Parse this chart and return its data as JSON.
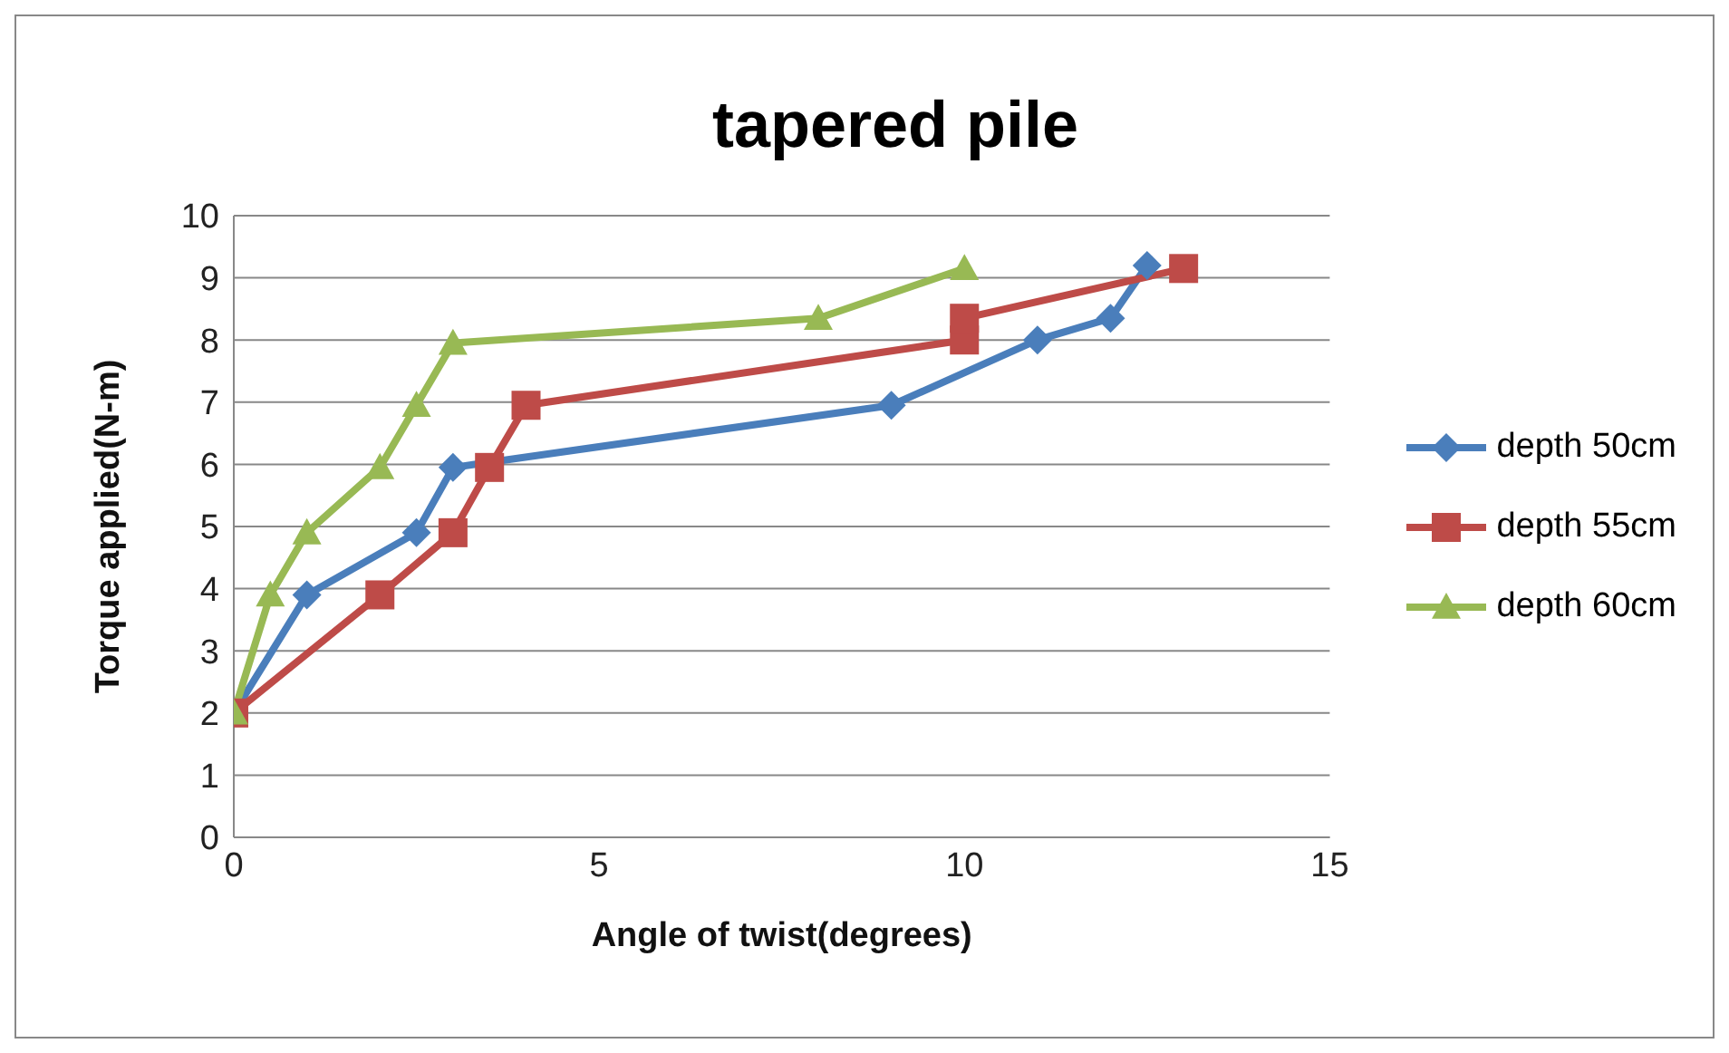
{
  "chart_data": {
    "type": "line",
    "title": "tapered pile",
    "xlabel": "Angle of twist(degrees)",
    "ylabel": "Torque applied(N-m)",
    "xlim": [
      0,
      15
    ],
    "xticks": [
      0,
      5,
      10,
      15
    ],
    "ylim": [
      0,
      10
    ],
    "yticks": [
      0,
      1,
      2,
      3,
      4,
      5,
      6,
      7,
      8,
      9,
      10
    ],
    "grid": "y",
    "legend": "right",
    "line_style": "solid",
    "series": [
      {
        "name": "depth 50cm",
        "color": "#4a7ebb",
        "marker": "diamond",
        "x": [
          0,
          1,
          2.5,
          3,
          9,
          11,
          12,
          12.5
        ],
        "values": [
          2,
          3.9,
          4.9,
          5.95,
          6.95,
          8,
          8.35,
          9.2
        ]
      },
      {
        "name": "depth 55cm",
        "color": "#be4b48",
        "marker": "square",
        "x": [
          0,
          2,
          3,
          3.5,
          4,
          10,
          10,
          13
        ],
        "values": [
          2,
          3.9,
          4.9,
          5.95,
          6.95,
          8,
          8.35,
          9.15
        ]
      },
      {
        "name": "depth 60cm",
        "color": "#98b954",
        "marker": "triangle",
        "x": [
          0,
          0.5,
          1,
          2,
          2.5,
          3,
          8,
          10
        ],
        "values": [
          2,
          3.9,
          4.9,
          5.95,
          6.95,
          7.95,
          8.35,
          9.15
        ]
      }
    ]
  }
}
